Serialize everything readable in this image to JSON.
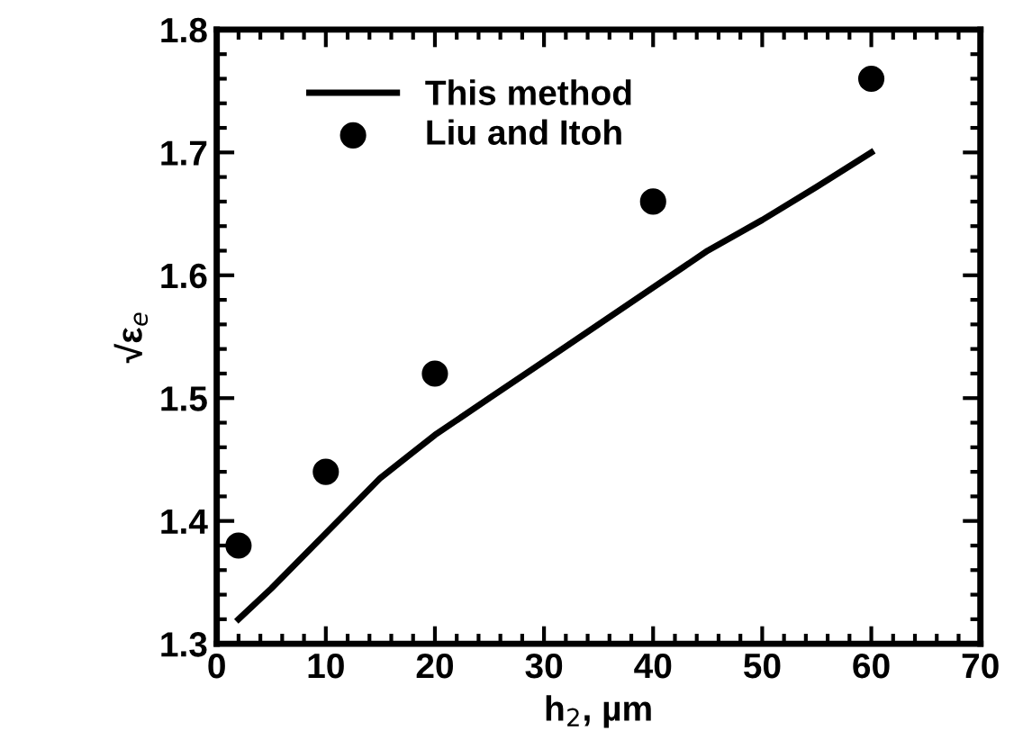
{
  "chart_data": {
    "type": "line",
    "xlabel": "h$_{2}$, µm",
    "ylabel": "√ε$_{e}$",
    "xlim": [
      0,
      70
    ],
    "ylim": [
      1.3,
      1.8
    ],
    "xticks": [
      0,
      10,
      20,
      30,
      40,
      50,
      60,
      70
    ],
    "yticks": [
      1.3,
      1.4,
      1.5,
      1.6,
      1.7,
      1.8
    ],
    "grid": false,
    "legend": "top left",
    "series": [
      {
        "name": "This method",
        "color": "#000000",
        "marker": "none",
        "line_style": "solid",
        "x": [
          2,
          5,
          10,
          15,
          20,
          25,
          30,
          35,
          40,
          45,
          50,
          55,
          60
        ],
        "values": [
          1.32,
          1.345,
          1.39,
          1.435,
          1.47,
          1.5,
          1.53,
          1.56,
          1.59,
          1.62,
          1.645,
          1.672,
          1.7
        ]
      },
      {
        "name": "Liu and Itoh",
        "type": "scatter",
        "color": "#000000",
        "marker": "circle",
        "x": [
          2,
          10,
          20,
          40,
          60
        ],
        "values": [
          1.38,
          1.44,
          1.52,
          1.66,
          1.76
        ]
      }
    ]
  }
}
